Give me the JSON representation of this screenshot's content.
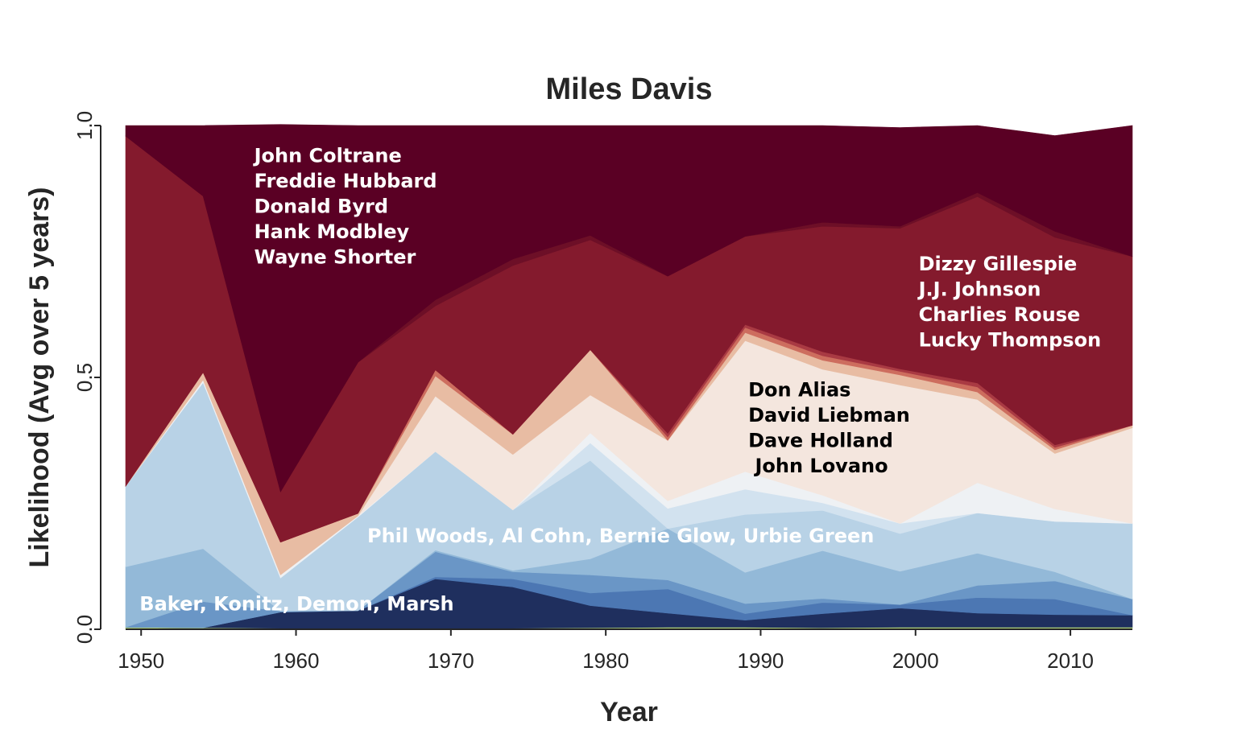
{
  "chart_data": {
    "type": "area",
    "stacked": true,
    "title": "Miles Davis",
    "xlabel": "Year",
    "ylabel": "Likelihood (Avg over 5 years)",
    "xlim": [
      1949,
      2014
    ],
    "ylim": [
      0,
      1
    ],
    "xticks": [
      1950,
      1960,
      1970,
      1980,
      1990,
      2000,
      2010
    ],
    "yticks": [
      {
        "value": 0,
        "label": "0.0"
      },
      {
        "value": 0.5,
        "label": "0.5"
      },
      {
        "value": 1,
        "label": "1.0"
      }
    ],
    "grid": false,
    "x": [
      1949,
      1954,
      1959,
      1964,
      1969,
      1974,
      1979,
      1984,
      1989,
      1994,
      1999,
      2004,
      2009,
      2014
    ],
    "series": [
      {
        "color": "#b2d47a",
        "values": [
          0.004,
          0.003,
          0.002,
          0.002,
          0.002,
          0.002,
          0.003,
          0.004,
          0.004,
          0.003,
          0.004,
          0.004,
          0.004,
          0.004
        ]
      },
      {
        "color": "#1f2f5e",
        "values": [
          0.0,
          0.0,
          0.032,
          0.035,
          0.098,
          0.082,
          0.044,
          0.028,
          0.014,
          0.028,
          0.038,
          0.028,
          0.025,
          0.024
        ]
      },
      {
        "color": "#4c77b3",
        "values": [
          0.0,
          0.0,
          0.0,
          0.0,
          0.004,
          0.016,
          0.025,
          0.048,
          0.013,
          0.022,
          0.007,
          0.031,
          0.031,
          0.0
        ]
      },
      {
        "color": "#6a96c6",
        "values": [
          0.0,
          0.052,
          0.002,
          0.0,
          0.05,
          0.014,
          0.036,
          0.018,
          0.02,
          0.008,
          0.0,
          0.024,
          0.036,
          0.032
        ]
      },
      {
        "color": "#93b9d8",
        "values": [
          0.12,
          0.105,
          0.0,
          0.0,
          0.003,
          0.003,
          0.032,
          0.102,
          0.062,
          0.095,
          0.066,
          0.064,
          0.018,
          0.0
        ]
      },
      {
        "color": "#b8d2e6",
        "values": [
          0.16,
          0.33,
          0.066,
          0.186,
          0.196,
          0.12,
          0.195,
          0.0,
          0.115,
          0.08,
          0.075,
          0.08,
          0.1,
          0.15
        ]
      },
      {
        "color": "#d2e2ef",
        "values": [
          0.0,
          0.0,
          0.0,
          0.0,
          0.0,
          0.0,
          0.035,
          0.04,
          0.05,
          0.015,
          0.02,
          0.0,
          0.0,
          0.0
        ]
      },
      {
        "color": "#eef1f4",
        "values": [
          0.0,
          0.005,
          0.006,
          0.002,
          0.0,
          0.0,
          0.02,
          0.015,
          0.035,
          0.015,
          0.0,
          0.06,
          0.025,
          0.0
        ]
      },
      {
        "color": "#f4e6de",
        "values": [
          0.0,
          0.0,
          0.0,
          0.0,
          0.11,
          0.11,
          0.075,
          0.12,
          0.26,
          0.25,
          0.275,
          0.165,
          0.11,
          0.19
        ]
      },
      {
        "color": "#e8bca3",
        "values": [
          0.0,
          0.015,
          0.065,
          0.005,
          0.04,
          0.04,
          0.09,
          0.0,
          0.016,
          0.018,
          0.02,
          0.015,
          0.007,
          0.005
        ]
      },
      {
        "color": "#cd6d5e",
        "values": [
          0.0,
          0.0,
          0.0,
          0.0,
          0.012,
          0.0,
          0.0,
          0.007,
          0.01,
          0.009,
          0.007,
          0.01,
          0.005,
          0.0
        ]
      },
      {
        "color": "#a93a43",
        "values": [
          0.0,
          0.0,
          0.0,
          0.0,
          0.0,
          0.0,
          0.0,
          0.007,
          0.006,
          0.008,
          0.005,
          0.008,
          0.005,
          0.0
        ]
      },
      {
        "color": "#841a2d",
        "values": [
          0.695,
          0.35,
          0.1,
          0.3,
          0.127,
          0.335,
          0.218,
          0.312,
          0.175,
          0.249,
          0.279,
          0.37,
          0.412,
          0.335
        ]
      },
      {
        "color": "#6d0f27",
        "values": [
          0.0,
          0.0,
          0.0,
          0.0,
          0.012,
          0.013,
          0.009,
          0.0,
          0.0,
          0.008,
          0.004,
          0.008,
          0.012,
          0.0
        ]
      },
      {
        "color": "#5a0024",
        "values": [
          0.021,
          0.14,
          0.729,
          0.47,
          0.346,
          0.265,
          0.218,
          0.299,
          0.22,
          0.192,
          0.196,
          0.133,
          0.19,
          0.26
        ]
      }
    ],
    "annotations": [
      {
        "lines": [
          "John Coltrane",
          "Freddie Hubbard",
          "Donald Byrd",
          "Hank Modbley",
          "Wayne Shorter"
        ],
        "color": "#ffffff",
        "x": 1957.3,
        "y": 0.94
      },
      {
        "lines": [
          "Dizzy Gillespie",
          "J.J. Johnson",
          "Charlies Rouse",
          "Lucky Thompson"
        ],
        "color": "#ffffff",
        "x": 2000.2,
        "y": 0.725
      },
      {
        "lines": [
          "Don Alias",
          "David Liebman",
          "Dave Holland",
          " John Lovano"
        ],
        "color": "#000000",
        "x": 1989.2,
        "y": 0.475
      },
      {
        "lines": [
          "Phil Woods, Al Cohn, Bernie Glow, Urbie Green"
        ],
        "color": "#ffffff",
        "x": 1964.6,
        "y": 0.185
      },
      {
        "lines": [
          "Baker, Konitz, Demon, Marsh"
        ],
        "color": "#ffffff",
        "x": 1949.9,
        "y": 0.05
      }
    ]
  }
}
